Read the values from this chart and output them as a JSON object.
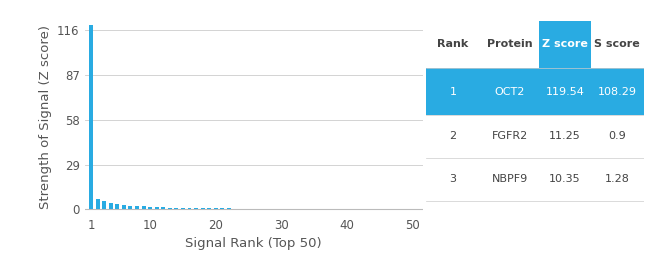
{
  "xlabel": "Signal Rank (Top 50)",
  "ylabel": "Strength of Signal (Z score)",
  "bar_color": "#29ABE2",
  "background_color": "#ffffff",
  "yticks": [
    0,
    29,
    58,
    87,
    116
  ],
  "xticks": [
    1,
    10,
    20,
    30,
    40,
    50
  ],
  "xlim": [
    0.0,
    51.5
  ],
  "ylim": [
    -3,
    122
  ],
  "n_bars": 50,
  "first_bar_value": 119.54,
  "decay_values": [
    7.0,
    5.5,
    4.2,
    3.5,
    3.0,
    2.5,
    2.2,
    2.0,
    1.8,
    1.5,
    1.3,
    1.2,
    1.1,
    1.0,
    0.9,
    0.85,
    0.8,
    0.75,
    0.7,
    0.65,
    0.6,
    0.55,
    0.5,
    0.48,
    0.45,
    0.42,
    0.4,
    0.38,
    0.35,
    0.33,
    0.31,
    0.3,
    0.28,
    0.26,
    0.25,
    0.23,
    0.22,
    0.2,
    0.19,
    0.18,
    0.17,
    0.16,
    0.15,
    0.14,
    0.13,
    0.12,
    0.11,
    0.1,
    0.09
  ],
  "table_header_bg": "#29ABE2",
  "table_row1_bg": "#29ABE2",
  "table_text_white": "#ffffff",
  "table_text_dark": "#444444",
  "table_header_bold": true,
  "table_data": [
    [
      "Rank",
      "Protein",
      "Z score",
      "S score"
    ],
    [
      "1",
      "OCT2",
      "119.54",
      "108.29"
    ],
    [
      "2",
      "FGFR2",
      "11.25",
      "0.9"
    ],
    [
      "3",
      "NBPF9",
      "10.35",
      "1.28"
    ]
  ],
  "grid_color": "#cccccc",
  "axis_color": "#bbbbbb",
  "tick_color": "#555555",
  "tick_fontsize": 8.5,
  "label_fontsize": 9.5
}
